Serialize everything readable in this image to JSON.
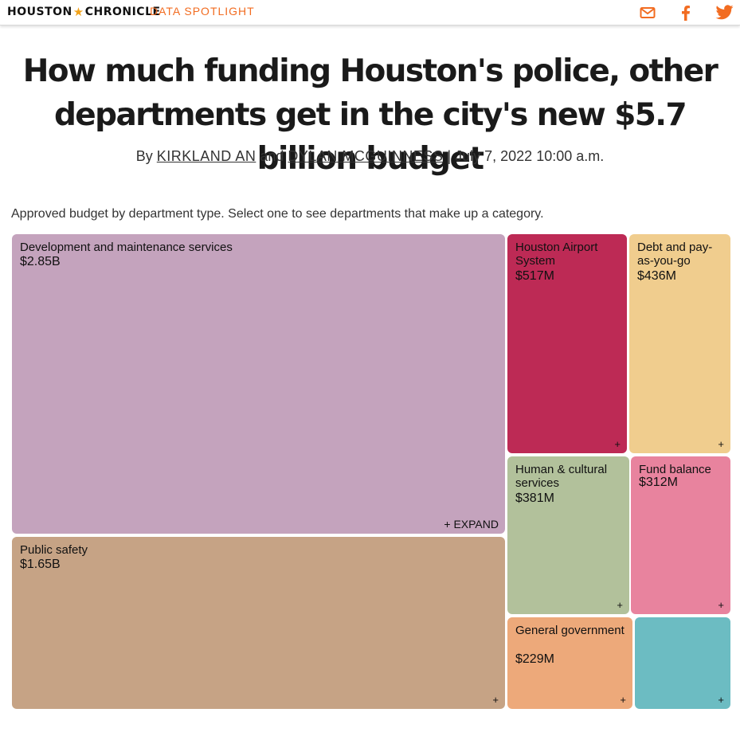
{
  "header": {
    "logo_left": "HOUSTON",
    "logo_right": "CHRONICLE",
    "section": "DATA SPOTLIGHT",
    "icons": [
      "mail-icon",
      "facebook-icon",
      "twitter-icon"
    ],
    "accent_color": "#f26c21"
  },
  "article": {
    "headline_line1": "How much funding Houston's police, other",
    "headline_line2": "departments get in the city's new $5.7 billion budget",
    "by": "By",
    "author1": "KIRKLAND AN",
    "and": "and",
    "author2": "DYLAN MCGUINNESS",
    "date": "| July 7, 2022 10:00 a.m.",
    "intro": "Approved budget by department type. Select one to see departments that make up a category."
  },
  "chart_data": {
    "type": "treemap",
    "units": "USD",
    "categories": [
      {
        "name": "Development and maintenance services",
        "label": "$2.85B",
        "value": 2850000000,
        "color": "#c4a3bd",
        "expand_label": "+ EXPAND"
      },
      {
        "name": "Public safety",
        "label": "$1.65B",
        "value": 1650000000,
        "color": "#c6a385",
        "expand_label": "+"
      },
      {
        "name": "Houston Airport System",
        "label": "$517M",
        "value": 517000000,
        "color": "#bd2a55",
        "expand_label": "+"
      },
      {
        "name": "Debt and pay-as-you-go",
        "label": "$436M",
        "value": 436000000,
        "color": "#f0cd8e",
        "expand_label": "+"
      },
      {
        "name": "Human & cultural services",
        "label": "$381M",
        "value": 381000000,
        "color": "#b2c19b",
        "expand_label": "+"
      },
      {
        "name": "Fund balance",
        "label": "$312M",
        "value": 312000000,
        "color": "#e8839e",
        "expand_label": "+"
      },
      {
        "name": "General government",
        "label": "$229M",
        "value": 229000000,
        "color": "#eda97a",
        "expand_label": "+"
      },
      {
        "name": "",
        "label": "",
        "value": null,
        "color": "#6cbcc2",
        "expand_label": "+"
      }
    ]
  }
}
